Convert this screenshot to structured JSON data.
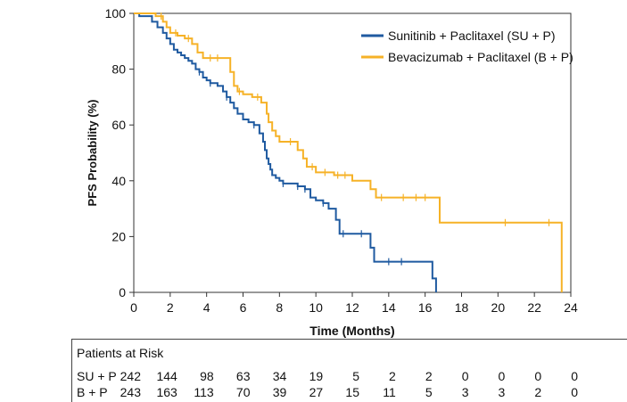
{
  "chart_data": {
    "type": "line",
    "title": "",
    "xlabel": "Time (Months)",
    "ylabel": "PFS Probability (%)",
    "xlim": [
      0,
      24
    ],
    "ylim": [
      0,
      100
    ],
    "xticks": [
      0,
      2,
      4,
      6,
      8,
      10,
      12,
      14,
      16,
      18,
      20,
      22,
      24
    ],
    "yticks": [
      0,
      20,
      40,
      60,
      80,
      100
    ],
    "grid": false,
    "legend_position": "top-right",
    "series": [
      {
        "name": "Sunitinib + Paclitaxel (SU + P)",
        "color": "#1f5aa0",
        "x": [
          0,
          0.3,
          1.0,
          1.3,
          1.6,
          1.8,
          2.0,
          2.2,
          2.4,
          2.6,
          2.8,
          3.0,
          3.2,
          3.4,
          3.6,
          3.8,
          4.0,
          4.2,
          4.6,
          4.9,
          5.1,
          5.3,
          5.5,
          5.7,
          6.0,
          6.3,
          6.6,
          6.9,
          7.1,
          7.2,
          7.3,
          7.4,
          7.5,
          7.6,
          7.8,
          8.0,
          8.2,
          9.0,
          9.4,
          9.7,
          10.0,
          10.4,
          10.7,
          11.1,
          11.3,
          11.5,
          12.5,
          13.0,
          13.2,
          14.0,
          16.2,
          16.4,
          16.6
        ],
        "y": [
          100,
          99,
          97,
          95,
          93,
          91,
          89,
          87,
          86,
          85,
          84,
          83,
          82,
          80,
          79,
          77,
          76,
          75,
          74,
          72,
          70,
          68,
          66,
          64,
          62,
          61,
          60,
          57,
          54,
          51,
          48,
          46,
          44,
          42,
          41,
          40,
          39,
          38,
          37,
          34,
          33,
          32,
          30,
          26,
          21,
          21,
          21,
          16,
          11,
          11,
          11,
          5,
          0
        ],
        "censor_x": [
          3.6,
          4.2,
          5.1,
          6.6,
          8.2,
          9.0,
          9.4,
          10.4,
          11.5,
          12.5,
          14.0,
          14.7
        ]
      },
      {
        "name": "Bevacizumab + Paclitaxel (B + P)",
        "color": "#f6b227",
        "x": [
          0,
          1.2,
          1.6,
          1.8,
          2.0,
          2.4,
          2.8,
          3.2,
          3.5,
          3.8,
          5.3,
          5.5,
          5.7,
          6.0,
          6.5,
          7.0,
          7.3,
          7.4,
          7.6,
          7.8,
          8.0,
          9.0,
          9.3,
          9.5,
          10.0,
          11.0,
          12.0,
          13.0,
          13.3,
          14.0,
          16.8,
          20.0,
          23.5
        ],
        "y": [
          100,
          99,
          97,
          95,
          93,
          92,
          91,
          89,
          86,
          84,
          79,
          74,
          72,
          71,
          70,
          68,
          64,
          61,
          58,
          56,
          54,
          51,
          48,
          45,
          43,
          42,
          40,
          37,
          34,
          34,
          25,
          25,
          0
        ],
        "censor_x": [
          1.5,
          2.3,
          3.0,
          4.2,
          4.6,
          5.8,
          6.8,
          8.6,
          9.8,
          10.5,
          11.2,
          11.6,
          13.6,
          14.8,
          15.5,
          16.0,
          20.4,
          22.8
        ]
      }
    ]
  },
  "risk_table": {
    "title": "Patients at Risk",
    "rows": [
      {
        "label": "SU + P",
        "values": [
          "242",
          "144",
          "98",
          "63",
          "34",
          "19",
          "5",
          "2",
          "2",
          "0",
          "0",
          "0",
          "0"
        ]
      },
      {
        "label": "B + P",
        "values": [
          "243",
          "163",
          "113",
          "70",
          "39",
          "27",
          "15",
          "11",
          "5",
          "3",
          "3",
          "2",
          "0"
        ]
      }
    ]
  }
}
